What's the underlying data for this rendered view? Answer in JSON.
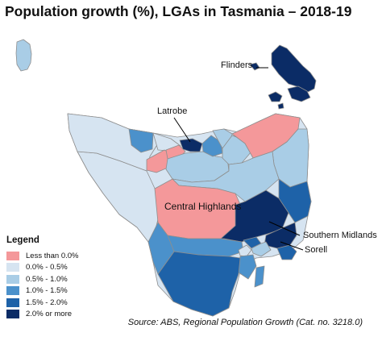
{
  "title": "Population growth (%), LGAs in Tasmania – 2018-19",
  "colors": {
    "neg": "#f4989a",
    "c0": "#d6e4f1",
    "c1": "#a9cde6",
    "c2": "#4b91cb",
    "c3": "#1e62a8",
    "c4": "#0b2c66",
    "border": "#8e8e8e",
    "leader": "#000000"
  },
  "legend": {
    "title": "Legend",
    "items": [
      {
        "label": "Less than 0.0%",
        "color": "#f4989a"
      },
      {
        "label": "0.0% - 0.5%",
        "color": "#d6e4f1"
      },
      {
        "label": "0.5% - 1.0%",
        "color": "#a9cde6"
      },
      {
        "label": "1.0% - 1.5%",
        "color": "#4b91cb"
      },
      {
        "label": "1.5% - 2.0%",
        "color": "#1e62a8"
      },
      {
        "label": "2.0% or more",
        "color": "#0b2c66"
      }
    ]
  },
  "labels": {
    "flinders": "Flinders",
    "latrobe": "Latrobe",
    "central_highlands": "Central Highlands",
    "southern_midlands": "Southern Midlands",
    "sorell": "Sorell"
  },
  "source": "Source: ABS, Regional Population Growth (Cat. no. 3218.0)"
}
